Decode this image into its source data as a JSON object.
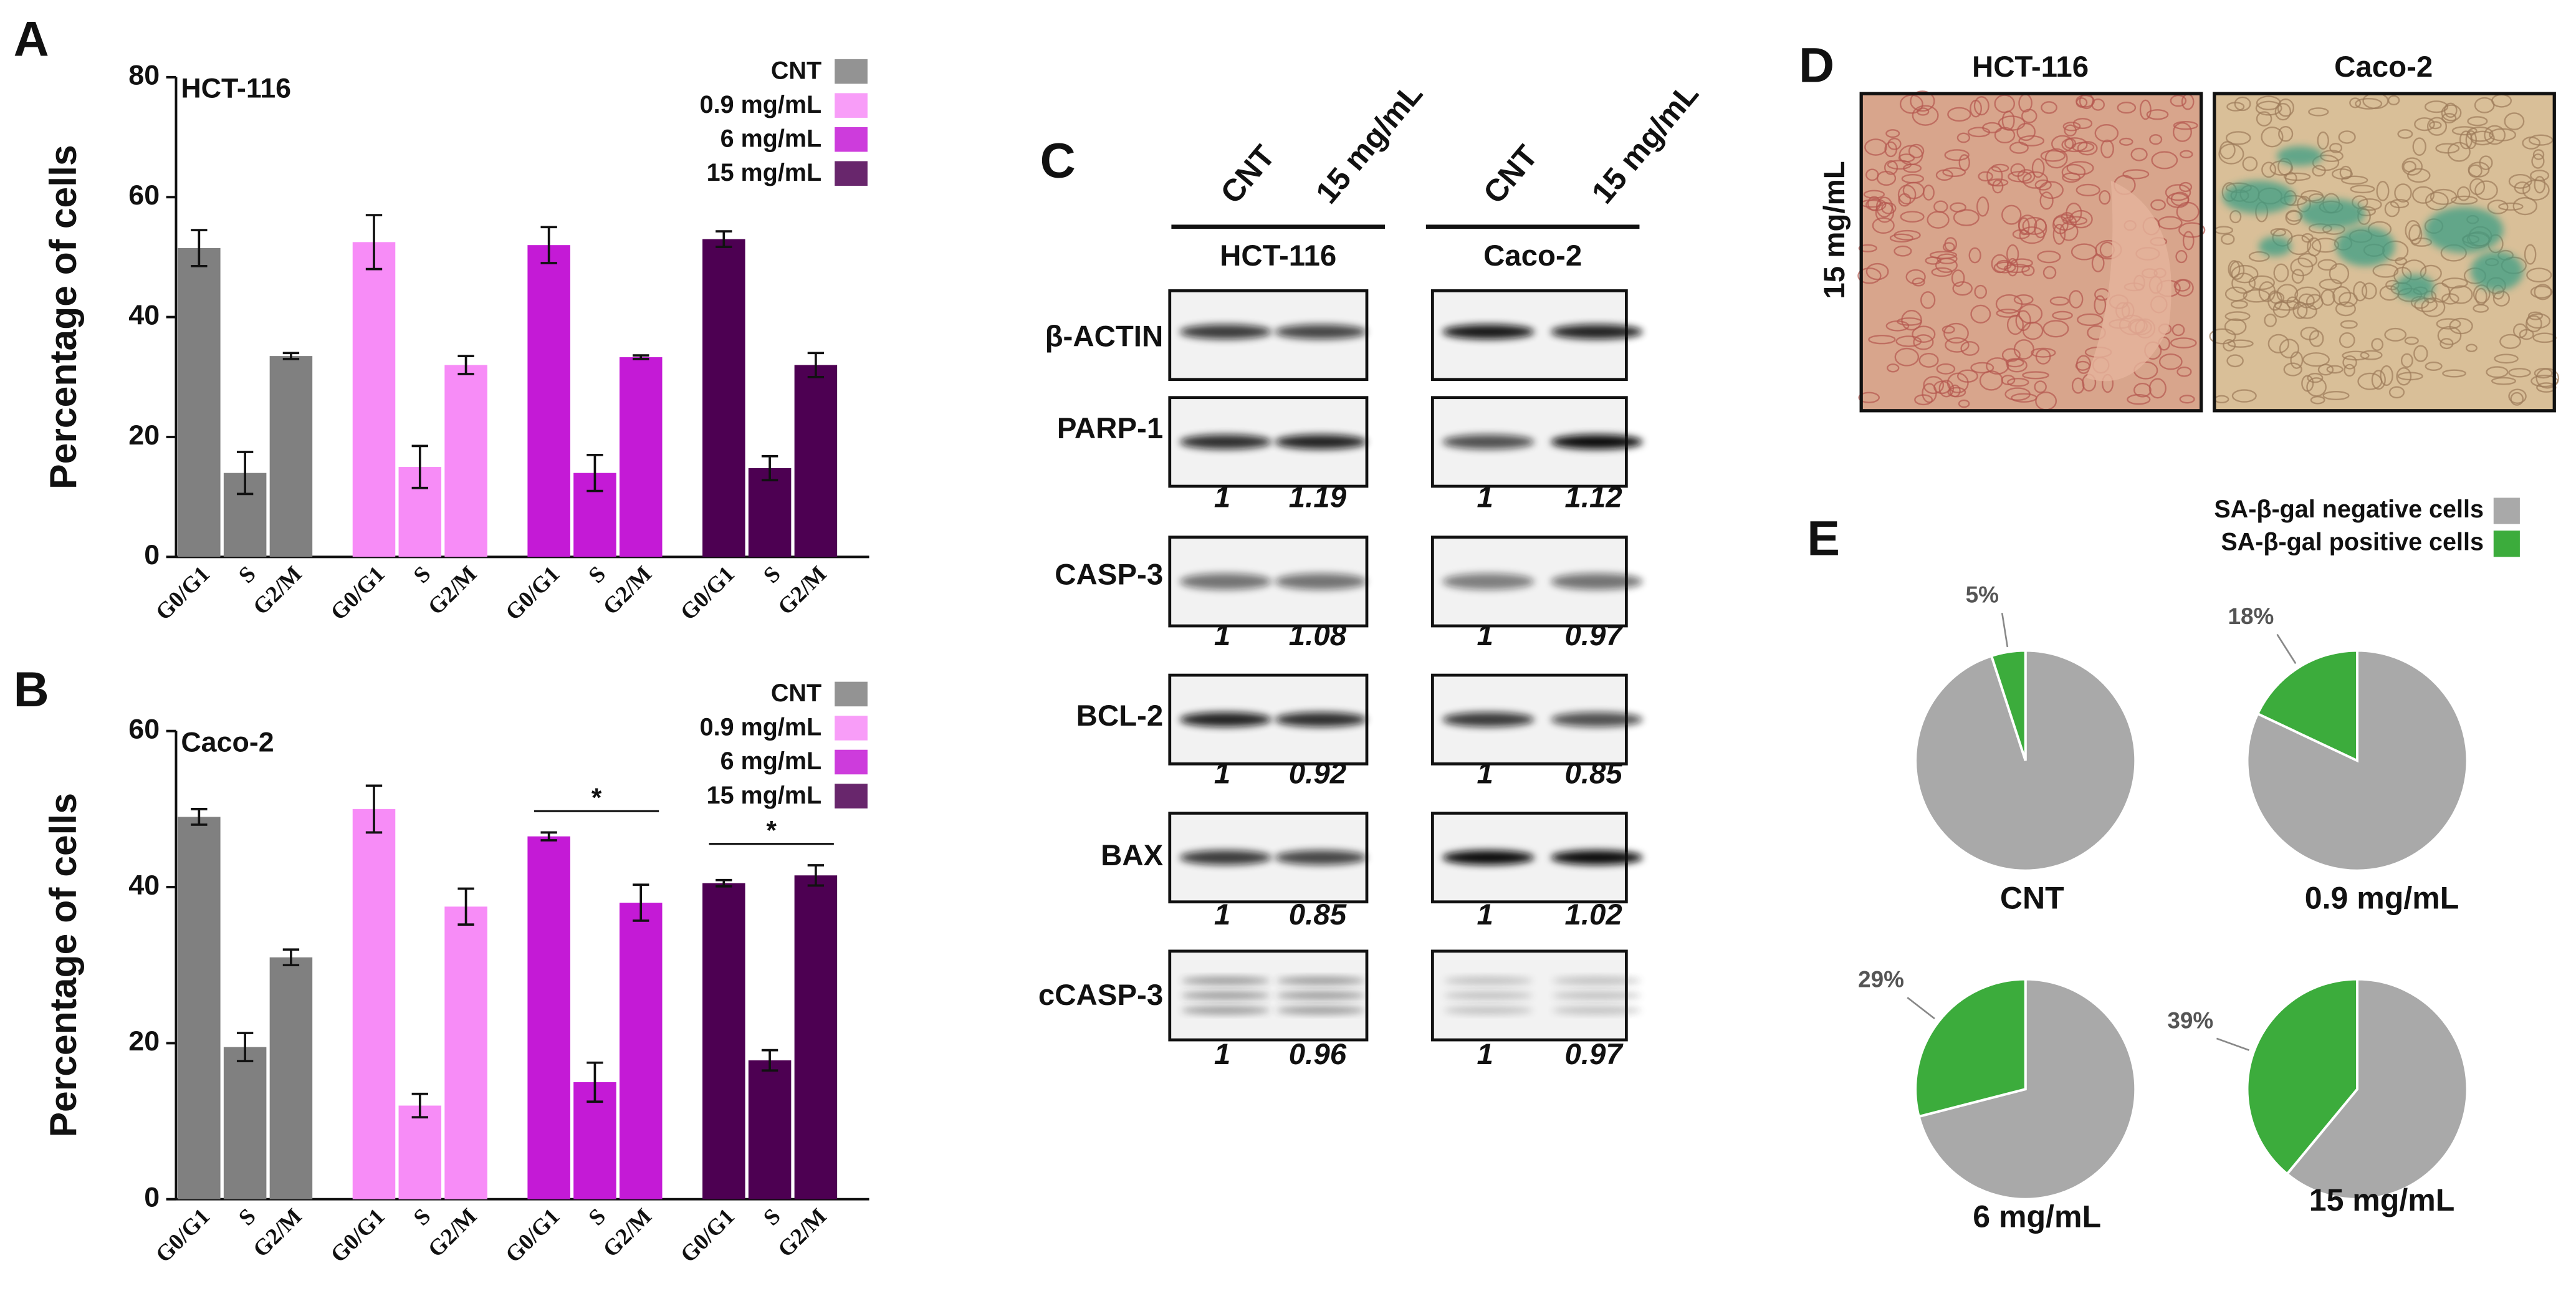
{
  "chart_data": [
    {
      "type": "bar",
      "panel_label": "A",
      "title": "HCT-116",
      "y_label": "Percentage of cells",
      "categories": [
        "G0/G1",
        "S",
        "G2/M"
      ],
      "series": [
        {
          "name": "CNT",
          "color": "#808080",
          "values": [
            51.5,
            14,
            33.5
          ],
          "errors": [
            3,
            3.5,
            0.5
          ]
        },
        {
          "name": "0.9 mg/mL",
          "color": "#f78cf7",
          "values": [
            52.5,
            15,
            32
          ],
          "errors": [
            4.5,
            3.5,
            1.5
          ]
        },
        {
          "name": "6 mg/mL",
          "color": "#c41ad6",
          "values": [
            52,
            14,
            33.3
          ],
          "errors": [
            3,
            3,
            0.3
          ]
        },
        {
          "name": "15 mg/mL",
          "color": "#4d0052",
          "values": [
            53,
            14.8,
            32
          ],
          "errors": [
            1.3,
            2,
            2
          ]
        }
      ],
      "ylim": [
        0,
        80
      ],
      "yticks": [
        0,
        20,
        40,
        60,
        80
      ]
    },
    {
      "type": "bar",
      "panel_label": "B",
      "title": "Caco-2",
      "y_label": "Percentage of cells",
      "categories": [
        "G0/G1",
        "S",
        "G2/M"
      ],
      "series": [
        {
          "name": "CNT",
          "color": "#808080",
          "values": [
            49,
            19.5,
            31
          ],
          "errors": [
            1,
            1.8,
            1
          ]
        },
        {
          "name": "0.9 mg/mL",
          "color": "#f78cf7",
          "values": [
            50,
            12,
            37.5
          ],
          "errors": [
            3,
            1.5,
            2.3
          ]
        },
        {
          "name": "6 mg/mL",
          "color": "#c41ad6",
          "values": [
            46.5,
            15,
            38
          ],
          "errors": [
            0.5,
            2.5,
            2.3
          ],
          "annotation": "*"
        },
        {
          "name": "15 mg/mL",
          "color": "#4d0052",
          "values": [
            40.5,
            17.8,
            41.5
          ],
          "errors": [
            0.4,
            1.3,
            1.3
          ],
          "annotation": "*"
        }
      ],
      "ylim": [
        0,
        60
      ],
      "yticks": [
        0,
        20,
        40,
        60
      ]
    },
    {
      "type": "pie",
      "panel_label": "E",
      "categories": [
        "SA-β-gal negative cells",
        "SA-β-gal positive cells"
      ],
      "colors": [
        "#a9a9a9",
        "#3cac3c"
      ],
      "pies": [
        {
          "title": "CNT",
          "values": [
            95,
            5
          ],
          "value_labels": [
            null,
            "5%"
          ]
        },
        {
          "title": "0.9 mg/mL",
          "values": [
            82,
            18
          ],
          "value_labels": [
            null,
            "18%"
          ]
        },
        {
          "title": "6 mg/mL",
          "values": [
            71,
            29
          ],
          "value_labels": [
            null,
            "29%"
          ]
        },
        {
          "title": "15 mg/mL",
          "values": [
            61,
            39
          ],
          "value_labels": [
            null,
            "39%"
          ]
        }
      ]
    }
  ],
  "blot": {
    "panel_label": "C",
    "columns": [
      "CNT",
      "15 mg/mL"
    ],
    "cell_lines": [
      "HCT-116",
      "Caco-2"
    ],
    "rows": [
      {
        "protein": "β-ACTIN"
      },
      {
        "protein": "PARP-1",
        "ratios": [
          [
            1,
            1.19
          ],
          [
            1,
            1.12
          ]
        ]
      },
      {
        "protein": "CASP-3",
        "ratios": [
          [
            1,
            1.08
          ],
          [
            1,
            0.97
          ]
        ]
      },
      {
        "protein": "BCL-2",
        "ratios": [
          [
            1,
            0.92
          ],
          [
            1,
            0.85
          ]
        ]
      },
      {
        "protein": "BAX",
        "ratios": [
          [
            1,
            0.85
          ],
          [
            1,
            1.02
          ]
        ]
      },
      {
        "protein": "cCASP-3",
        "ratios": [
          [
            1,
            0.96
          ],
          [
            1,
            0.97
          ]
        ]
      }
    ]
  },
  "micrographs": {
    "panel_label": "D",
    "cell_lines": [
      "HCT-116",
      "Caco-2"
    ],
    "row_label": "15 mg/mL"
  }
}
